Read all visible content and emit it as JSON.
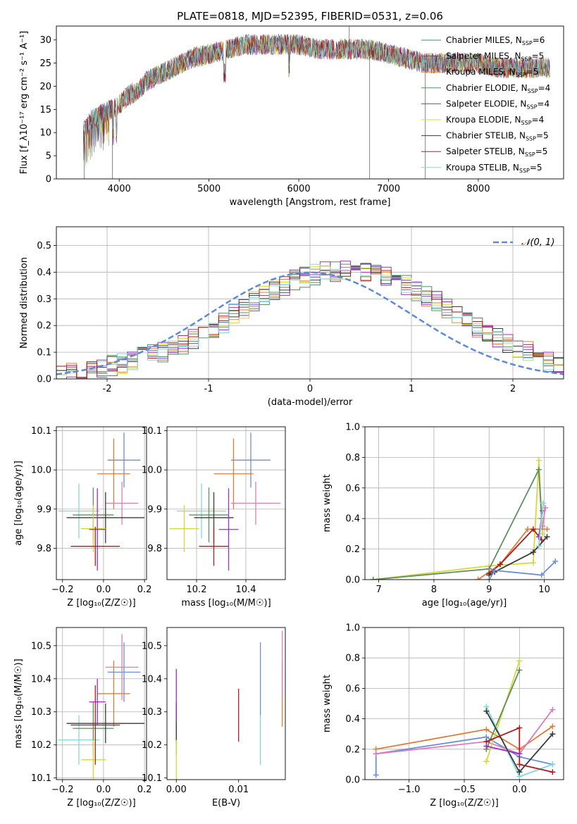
{
  "figure": {
    "title": "PLATE=0818, MJD=52395, FIBERID=0531, z=0.06"
  },
  "colors": {
    "series": [
      "#4a8c5c",
      "#7b35c9",
      "#e07b39",
      "#5e8f5e",
      "#9c2fc2",
      "#d6d83a",
      "#3a3a3a",
      "#b01c1c",
      "#7fd8db",
      "#6a8fd8",
      "#e07ab8",
      "#e6b100"
    ]
  },
  "chart_data": [
    {
      "id": "spectrum",
      "type": "line",
      "xlabel": "wavelength [Angstrom, rest frame]",
      "ylabel": "Flux [f_λ10⁻¹⁷ erg cm⁻² s⁻¹ A⁻¹]",
      "xlim": [
        3300,
        8950
      ],
      "ylim": [
        0,
        33
      ],
      "xticks": [
        4000,
        5000,
        6000,
        7000,
        8000
      ],
      "yticks": [
        0,
        5,
        10,
        15,
        20,
        25,
        30
      ],
      "grid": false,
      "legend_position": "top-right",
      "envelope": {
        "x": [
          3600,
          3700,
          3800,
          3900,
          4000,
          4100,
          4200,
          4300,
          4400,
          4500,
          4600,
          4800,
          5000,
          5200,
          5400,
          5600,
          5800,
          6000,
          6200,
          6400,
          6600,
          6800,
          7000,
          7200,
          7400,
          7600,
          7800,
          8000,
          8200,
          8400,
          8600,
          8800
        ],
        "y": [
          10,
          13,
          14,
          15,
          16,
          18,
          19,
          21,
          22,
          23,
          24,
          26,
          27,
          28,
          29,
          29,
          29,
          29,
          28,
          28,
          28,
          28,
          27,
          26,
          25,
          25,
          25,
          25,
          24,
          24,
          24,
          24
        ]
      },
      "series": [
        {
          "name": "Chabrier MILES, N_SSP=6",
          "label_main": "Chabrier MILES, N",
          "label_sub": "SSP",
          "label_tail": "=6",
          "color": "#4a8c5c"
        },
        {
          "name": "Salpeter MILES, N_SSP=5",
          "label_main": "Salpeter MILES, N",
          "label_sub": "SSP",
          "label_tail": "=5",
          "color": "#7b35c9"
        },
        {
          "name": "Kroupa MILES, N_SSP=5",
          "label_main": "Kroupa MILES, N",
          "label_sub": "SSP",
          "label_tail": "=5",
          "color": "#e07b39"
        },
        {
          "name": "Chabrier ELODIE, N_SSP=4",
          "label_main": "Chabrier ELODIE, N",
          "label_sub": "SSP",
          "label_tail": "=4",
          "color": "#5e8f5e"
        },
        {
          "name": "Salpeter ELODIE, N_SSP=4",
          "label_main": "Salpeter ELODIE, N",
          "label_sub": "SSP",
          "label_tail": "=4",
          "color": "#9c2fc2"
        },
        {
          "name": "Kroupa ELODIE, N_SSP=4",
          "label_main": "Kroupa ELODIE, N",
          "label_sub": "SSP",
          "label_tail": "=4",
          "color": "#d6d83a"
        },
        {
          "name": "Chabrier STELIB, N_SSP=5",
          "label_main": "Chabrier STELIB, N",
          "label_sub": "SSP",
          "label_tail": "=5",
          "color": "#3a3a3a"
        },
        {
          "name": "Salpeter STELIB, N_SSP=5",
          "label_main": "Salpeter STELIB, N",
          "label_sub": "SSP",
          "label_tail": "=5",
          "color": "#b01c1c"
        },
        {
          "name": "Kroupa STELIB, N_SSP=5",
          "label_main": "Kroupa STELIB, N",
          "label_sub": "SSP",
          "label_tail": "=5",
          "color": "#7fd8db"
        }
      ]
    },
    {
      "id": "residuals",
      "type": "line",
      "xlabel": "(data-model)/error",
      "ylabel": "Normed distribution",
      "xlim": [
        -2.5,
        2.5
      ],
      "ylim": [
        0,
        0.57
      ],
      "xticks": [
        -2,
        -1,
        0,
        1,
        2
      ],
      "yticks": [
        0.0,
        0.1,
        0.2,
        0.3,
        0.4,
        0.5
      ],
      "grid": true,
      "legend_position": "top-right",
      "legend_label": "𝒩(0, 1)",
      "gaussian_color": "#5b8bd6",
      "bin_width": 0.1,
      "bin_start": -2.5,
      "hist_base": [
        0.02,
        0.02,
        0.03,
        0.03,
        0.04,
        0.05,
        0.06,
        0.07,
        0.08,
        0.09,
        0.1,
        0.12,
        0.13,
        0.15,
        0.17,
        0.19,
        0.21,
        0.24,
        0.26,
        0.29,
        0.31,
        0.33,
        0.35,
        0.37,
        0.38,
        0.39,
        0.4,
        0.4,
        0.41,
        0.41,
        0.4,
        0.4,
        0.38,
        0.37,
        0.35,
        0.33,
        0.31,
        0.29,
        0.26,
        0.24,
        0.21,
        0.19,
        0.17,
        0.15,
        0.13,
        0.11,
        0.1,
        0.08,
        0.06,
        0.05
      ]
    },
    {
      "id": "age-vs-Z",
      "type": "scatter",
      "xlabel": "Z [log₁₀(Z/Z☉)]",
      "ylabel": "age  [log₁₀(age/yr)]",
      "xlim": [
        -0.23,
        0.21
      ],
      "ylim": [
        9.72,
        10.11
      ],
      "xticks": [
        -0.2,
        0.0,
        0.2
      ],
      "xticklabels": [
        "−0.2",
        "0.0",
        "0.2"
      ],
      "yticks": [
        9.8,
        9.9,
        10.0,
        10.1
      ],
      "grid": true,
      "points": [
        {
          "x": 0.1,
          "xe": 0.08,
          "y": 10.025,
          "ye": 0.07,
          "color": "#6a8fd8"
        },
        {
          "x": 0.05,
          "xe": 0.08,
          "y": 9.99,
          "ye": 0.09,
          "color": "#e07b39"
        },
        {
          "x": 0.09,
          "xe": 0.08,
          "y": 9.915,
          "ye": 0.055,
          "color": "#e07ab8"
        },
        {
          "x": -0.12,
          "xe": 0.1,
          "y": 9.895,
          "ye": 0.07,
          "color": "#7fd8db"
        },
        {
          "x": -0.05,
          "xe": 0.1,
          "y": 9.885,
          "ye": 0.07,
          "color": "#5e8f5e"
        },
        {
          "x": 0.01,
          "xe": 0.19,
          "y": 9.878,
          "ye": 0.065,
          "color": "#3a3a3a"
        },
        {
          "x": -0.05,
          "xe": 0.06,
          "y": 9.85,
          "ye": 0.06,
          "color": "#d6d83a"
        },
        {
          "x": -0.03,
          "xe": 0.04,
          "y": 9.848,
          "ye": 0.105,
          "color": "#9c2fc2"
        },
        {
          "x": -0.04,
          "xe": 0.12,
          "y": 9.805,
          "ye": 0.05,
          "color": "#b01c1c"
        }
      ]
    },
    {
      "id": "age-vs-mass",
      "type": "scatter",
      "xlabel": "mass [log₁₀(M/M☉)]",
      "ylabel": "",
      "xlim": [
        10.08,
        10.56
      ],
      "ylim": [
        9.72,
        10.11
      ],
      "xticks": [
        10.2,
        10.4
      ],
      "yticks": [
        9.8,
        9.9,
        10.0,
        10.1
      ],
      "grid": true,
      "points": [
        {
          "x": 10.42,
          "xe": 0.08,
          "y": 10.025,
          "ye": 0.07,
          "color": "#6a8fd8"
        },
        {
          "x": 10.35,
          "xe": 0.08,
          "y": 9.99,
          "ye": 0.09,
          "color": "#e07b39"
        },
        {
          "x": 10.44,
          "xe": 0.1,
          "y": 9.915,
          "ye": 0.055,
          "color": "#e07ab8"
        },
        {
          "x": 10.22,
          "xe": 0.1,
          "y": 9.895,
          "ye": 0.07,
          "color": "#7fd8db"
        },
        {
          "x": 10.25,
          "xe": 0.08,
          "y": 9.885,
          "ye": 0.07,
          "color": "#5e8f5e"
        },
        {
          "x": 10.27,
          "xe": 0.08,
          "y": 9.878,
          "ye": 0.065,
          "color": "#3a3a3a"
        },
        {
          "x": 10.15,
          "xe": 0.06,
          "y": 9.85,
          "ye": 0.06,
          "color": "#d6d83a"
        },
        {
          "x": 10.33,
          "xe": 0.04,
          "y": 9.848,
          "ye": 0.105,
          "color": "#9c2fc2"
        },
        {
          "x": 10.27,
          "xe": 0.06,
          "y": 9.805,
          "ye": 0.05,
          "color": "#b01c1c"
        }
      ]
    },
    {
      "id": "weight-vs-age",
      "type": "line",
      "xlabel": "age  [log₁₀(age/yr)]",
      "ylabel": "mass weight",
      "xlim": [
        6.75,
        10.35
      ],
      "ylim": [
        0,
        1.0
      ],
      "xticks": [
        7,
        8,
        9,
        10
      ],
      "yticks": [
        0.0,
        0.2,
        0.4,
        0.6,
        0.8,
        1.0
      ],
      "grid": true,
      "series": [
        {
          "color": "#d6d83a",
          "x": [
            6.9,
            9.0,
            9.8,
            9.9,
            9.97
          ],
          "y": [
            0.0,
            0.09,
            0.11,
            0.78,
            0.3
          ]
        },
        {
          "color": "#5e8f5e",
          "x": [
            6.9,
            9.0,
            9.9,
            9.95
          ],
          "y": [
            0.0,
            0.07,
            0.72,
            0.4
          ]
        },
        {
          "color": "#e07b39",
          "x": [
            8.8,
            9.2,
            9.7,
            10.05
          ],
          "y": [
            0.0,
            0.1,
            0.33,
            0.33
          ]
        },
        {
          "color": "#b01c1c",
          "x": [
            9.0,
            9.2,
            9.8,
            9.95
          ],
          "y": [
            0.04,
            0.1,
            0.33,
            0.26
          ]
        },
        {
          "color": "#3a3a3a",
          "x": [
            9.0,
            9.1,
            9.8,
            10.05
          ],
          "y": [
            0.03,
            0.05,
            0.18,
            0.28
          ]
        },
        {
          "color": "#6a8fd8",
          "x": [
            9.0,
            9.1,
            9.95,
            10.2
          ],
          "y": [
            0.0,
            0.06,
            0.03,
            0.12
          ]
        },
        {
          "color": "#9c2fc2",
          "x": [
            9.9,
            9.97
          ],
          "y": [
            0.28,
            0.45
          ]
        },
        {
          "color": "#e07ab8",
          "x": [
            9.97,
            10.02
          ],
          "y": [
            0.35,
            0.47
          ]
        },
        {
          "color": "#7fd8db",
          "x": [
            9.9,
            9.98
          ],
          "y": [
            0.22,
            0.5
          ]
        }
      ]
    },
    {
      "id": "mass-vs-Z",
      "type": "scatter",
      "xlabel": "Z [log₁₀(Z/Z☉)]",
      "ylabel": "mass [log₁₀(M/M☉)]",
      "xlim": [
        -0.23,
        0.21
      ],
      "ylim": [
        10.095,
        10.555
      ],
      "xticks": [
        -0.2,
        0.0,
        0.2
      ],
      "xticklabels": [
        "−0.2",
        "0.0",
        "0.2"
      ],
      "yticks": [
        10.1,
        10.2,
        10.3,
        10.4,
        10.5
      ],
      "grid": true,
      "points": [
        {
          "x": 0.1,
          "xe": 0.08,
          "y": 10.42,
          "ye": 0.09,
          "color": "#6a8fd8"
        },
        {
          "x": 0.05,
          "xe": 0.08,
          "y": 10.355,
          "ye": 0.1,
          "color": "#e07b39"
        },
        {
          "x": 0.09,
          "xe": 0.08,
          "y": 10.435,
          "ye": 0.1,
          "color": "#e07ab8"
        },
        {
          "x": -0.12,
          "xe": 0.1,
          "y": 10.215,
          "ye": 0.075,
          "color": "#7fd8db"
        },
        {
          "x": -0.05,
          "xe": 0.1,
          "y": 10.25,
          "ye": 0.08,
          "color": "#5e8f5e"
        },
        {
          "x": 0.01,
          "xe": 0.19,
          "y": 10.265,
          "ye": 0.06,
          "color": "#3a3a3a"
        },
        {
          "x": -0.05,
          "xe": 0.06,
          "y": 10.155,
          "ye": 0.06,
          "color": "#d6d83a"
        },
        {
          "x": -0.03,
          "xe": 0.04,
          "y": 10.33,
          "ye": 0.07,
          "color": "#9c2fc2"
        },
        {
          "x": -0.04,
          "xe": 0.12,
          "y": 10.26,
          "ye": 0.12,
          "color": "#b01c1c"
        }
      ]
    },
    {
      "id": "mass-vs-EBV",
      "type": "scatter",
      "xlabel": "E(B-V)",
      "ylabel": "",
      "xlim": [
        -0.0015,
        0.0175
      ],
      "ylim": [
        10.095,
        10.555
      ],
      "xticks": [
        0.0,
        0.01
      ],
      "xticklabels": [
        "0.00",
        "0.01"
      ],
      "yticks": [
        10.1,
        10.2,
        10.3,
        10.4,
        10.5
      ],
      "grid": false,
      "points": [
        {
          "x": 0.0135,
          "y": 10.4,
          "ye": 0.11,
          "color": "#6a8fd8"
        },
        {
          "x": 0.017,
          "y": 10.355,
          "ye": 0.1,
          "color": "#e07b39"
        },
        {
          "x": 0.017,
          "y": 10.445,
          "ye": 0.1,
          "color": "#e07ab8"
        },
        {
          "x": 0.0135,
          "y": 10.215,
          "ye": 0.075,
          "color": "#7fd8db"
        },
        {
          "x": 0.0,
          "y": 10.25,
          "ye": 0.08,
          "color": "#5e8f5e"
        },
        {
          "x": 0.0,
          "y": 10.265,
          "ye": 0.06,
          "color": "#3a3a3a"
        },
        {
          "x": 0.0,
          "y": 10.155,
          "ye": 0.06,
          "color": "#d6d83a"
        },
        {
          "x": 0.0,
          "y": 10.35,
          "ye": 0.08,
          "color": "#9c2fc2"
        },
        {
          "x": 0.01,
          "y": 10.29,
          "ye": 0.08,
          "color": "#b01c1c"
        }
      ]
    },
    {
      "id": "weight-vs-Z",
      "type": "line",
      "xlabel": "Z [log₁₀(Z/Z☉)]",
      "ylabel": "mass weight",
      "xlim": [
        -1.4,
        0.4
      ],
      "ylim": [
        0,
        1.0
      ],
      "xticks": [
        -1.0,
        -0.5,
        0.0
      ],
      "xticklabels": [
        "−1.0",
        "−0.5",
        "0.0"
      ],
      "yticks": [
        0.0,
        0.2,
        0.4,
        0.6,
        0.8,
        1.0
      ],
      "grid": true,
      "series": [
        {
          "color": "#e07b39",
          "x": [
            -1.3,
            -0.3,
            0.0,
            0.3
          ],
          "y": [
            0.2,
            0.33,
            0.2,
            0.35
          ]
        },
        {
          "color": "#6a8fd8",
          "x": [
            -1.3,
            -1.3,
            -0.3,
            0.0,
            0.3
          ],
          "y": [
            0.03,
            0.17,
            0.28,
            0.15,
            0.1
          ]
        },
        {
          "color": "#e07ab8",
          "x": [
            -1.3,
            -0.3,
            0.0,
            0.3
          ],
          "y": [
            0.17,
            0.25,
            0.17,
            0.46
          ]
        },
        {
          "color": "#d6d83a",
          "x": [
            -0.3,
            0.0,
            -0.3
          ],
          "y": [
            0.12,
            0.78,
            0.12
          ]
        },
        {
          "color": "#5e8f5e",
          "x": [
            -0.3,
            0.0
          ],
          "y": [
            0.2,
            0.72
          ]
        },
        {
          "color": "#7fd8db",
          "x": [
            -0.3,
            0.0,
            0.3
          ],
          "y": [
            0.48,
            0.02,
            0.1
          ]
        },
        {
          "color": "#3a3a3a",
          "x": [
            -0.3,
            0.0,
            0.3
          ],
          "y": [
            0.45,
            0.05,
            0.3
          ]
        },
        {
          "color": "#b01c1c",
          "x": [
            -0.3,
            0.0,
            0.0,
            0.3
          ],
          "y": [
            0.25,
            0.34,
            0.1,
            0.05
          ]
        },
        {
          "color": "#9c2fc2",
          "x": [
            -0.3,
            0.0
          ],
          "y": [
            0.22,
            0.17
          ]
        }
      ]
    }
  ]
}
